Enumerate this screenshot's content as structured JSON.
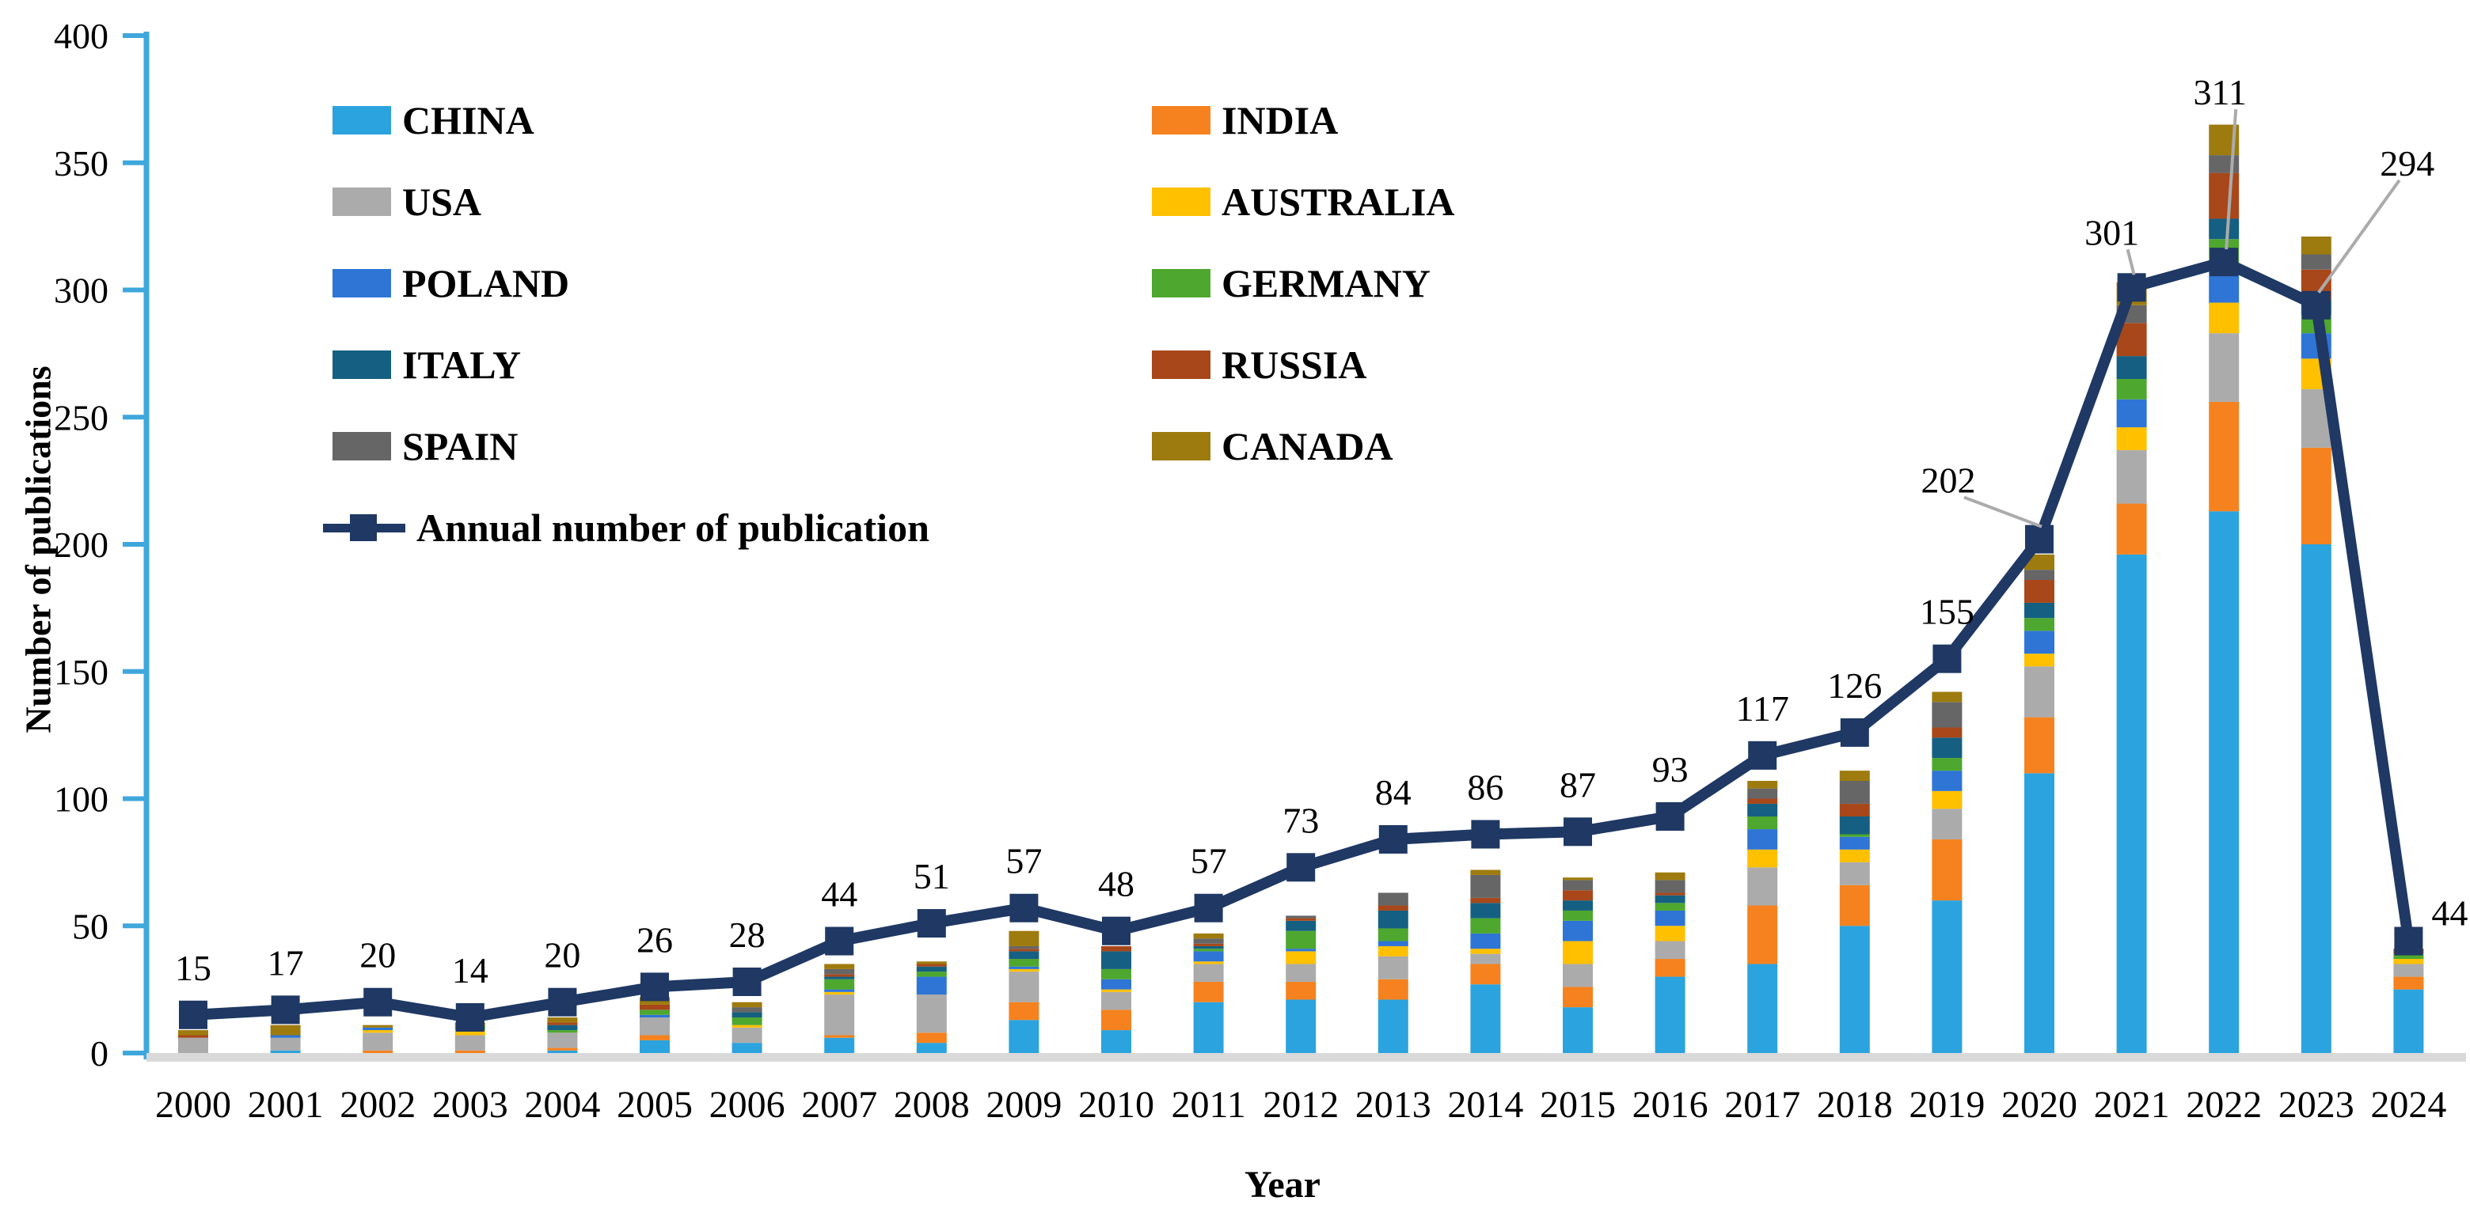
{
  "y_axis": {
    "title": "Number of publications",
    "ticks": [
      0,
      50,
      100,
      150,
      200,
      250,
      300,
      350,
      400
    ],
    "max": 400
  },
  "x_axis": {
    "title": "Year"
  },
  "legend": {
    "items": [
      {
        "label": "CHINA",
        "color": "#2BA3DE"
      },
      {
        "label": "INDIA",
        "color": "#F5821E"
      },
      {
        "label": "USA",
        "color": "#ABABAB"
      },
      {
        "label": "AUSTRALIA",
        "color": "#FFC000"
      },
      {
        "label": "POLAND",
        "color": "#2E75D6"
      },
      {
        "label": "GERMANY",
        "color": "#4EA72E"
      },
      {
        "label": "ITALY",
        "color": "#156082"
      },
      {
        "label": "RUSSIA",
        "color": "#A8471A"
      },
      {
        "label": "SPAIN",
        "color": "#666666"
      },
      {
        "label": "CANADA",
        "color": "#9E7B0E"
      }
    ],
    "line_item": {
      "label": "Annual number of publication",
      "color": "#1F3864"
    }
  },
  "chart_data": {
    "type": "combo-stacked-bar-line",
    "title": "",
    "xlabel": "Year",
    "ylabel": "Number of publications",
    "ylim": [
      0,
      400
    ],
    "grid": false,
    "legend_position": "upper-left-inside",
    "categories": [
      2000,
      2001,
      2002,
      2003,
      2004,
      2005,
      2006,
      2007,
      2008,
      2009,
      2010,
      2011,
      2012,
      2013,
      2014,
      2015,
      2016,
      2017,
      2018,
      2019,
      2020,
      2021,
      2022,
      2023,
      2024
    ],
    "series": [
      {
        "name": "CHINA",
        "color": "#2BA3DE",
        "values": [
          0,
          1,
          0,
          0,
          1,
          5,
          4,
          6,
          4,
          13,
          9,
          20,
          21,
          21,
          27,
          18,
          30,
          35,
          50,
          60,
          110,
          196,
          213,
          200,
          25
        ]
      },
      {
        "name": "INDIA",
        "color": "#F5821E",
        "values": [
          0,
          0,
          1,
          1,
          1,
          2,
          0,
          1,
          4,
          7,
          8,
          8,
          7,
          8,
          8,
          8,
          7,
          23,
          16,
          24,
          22,
          20,
          43,
          38,
          5
        ]
      },
      {
        "name": "USA",
        "color": "#ABABAB",
        "values": [
          6,
          5,
          7,
          6,
          6,
          7,
          6,
          16,
          15,
          12,
          7,
          7,
          7,
          9,
          4,
          9,
          7,
          15,
          9,
          12,
          20,
          21,
          27,
          23,
          5
        ]
      },
      {
        "name": "AUSTRALIA",
        "color": "#FFC000",
        "values": [
          0,
          0,
          1,
          2,
          0,
          0,
          1,
          1,
          0,
          1,
          1,
          1,
          5,
          4,
          2,
          9,
          6,
          7,
          5,
          7,
          5,
          9,
          12,
          12,
          2
        ]
      },
      {
        "name": "POLAND",
        "color": "#2E75D6",
        "values": [
          0,
          1,
          1,
          0,
          0,
          1,
          0,
          1,
          7,
          1,
          4,
          4,
          1,
          2,
          6,
          8,
          6,
          8,
          5,
          8,
          9,
          11,
          14,
          10,
          0
        ]
      },
      {
        "name": "GERMANY",
        "color": "#4EA72E",
        "values": [
          0,
          0,
          0,
          2,
          1,
          2,
          3,
          4,
          2,
          3,
          4,
          1,
          7,
          5,
          6,
          4,
          3,
          5,
          1,
          5,
          5,
          8,
          11,
          7,
          2
        ]
      },
      {
        "name": "ITALY",
        "color": "#156082",
        "values": [
          0,
          0,
          0,
          0,
          2,
          0,
          2,
          1,
          2,
          3,
          7,
          1,
          4,
          7,
          6,
          4,
          3,
          5,
          7,
          8,
          6,
          9,
          8,
          6,
          0
        ]
      },
      {
        "name": "RUSSIA",
        "color": "#A8471A",
        "values": [
          1,
          0,
          0,
          0,
          1,
          2,
          0,
          1,
          1,
          1,
          2,
          1,
          1,
          2,
          2,
          4,
          1,
          2,
          5,
          4,
          9,
          13,
          18,
          12,
          2
        ]
      },
      {
        "name": "SPAIN",
        "color": "#666666",
        "values": [
          0,
          0,
          0,
          0,
          0,
          0,
          2,
          2,
          0,
          1,
          0,
          2,
          1,
          5,
          9,
          4,
          5,
          4,
          9,
          10,
          4,
          7,
          7,
          6,
          0
        ]
      },
      {
        "name": "CANADA",
        "color": "#9E7B0E",
        "values": [
          2,
          4,
          1,
          1,
          2,
          3,
          2,
          2,
          1,
          6,
          0,
          2,
          0,
          0,
          2,
          1,
          3,
          3,
          4,
          4,
          6,
          9,
          12,
          7,
          0
        ]
      }
    ],
    "line_series": {
      "name": "Annual number of publication",
      "color": "#1F3864",
      "values": [
        15,
        17,
        20,
        14,
        20,
        26,
        28,
        44,
        51,
        57,
        48,
        57,
        73,
        84,
        86,
        87,
        93,
        117,
        126,
        155,
        202,
        301,
        311,
        294,
        44
      ],
      "labels": [
        "15",
        "17",
        "20",
        "14",
        "20",
        "26",
        "28",
        "44",
        "51",
        "57",
        "48",
        "57",
        "73",
        "84",
        "86",
        "87",
        "93",
        "117",
        "126",
        "155",
        "202",
        "301",
        "311",
        "294",
        "44"
      ]
    }
  }
}
